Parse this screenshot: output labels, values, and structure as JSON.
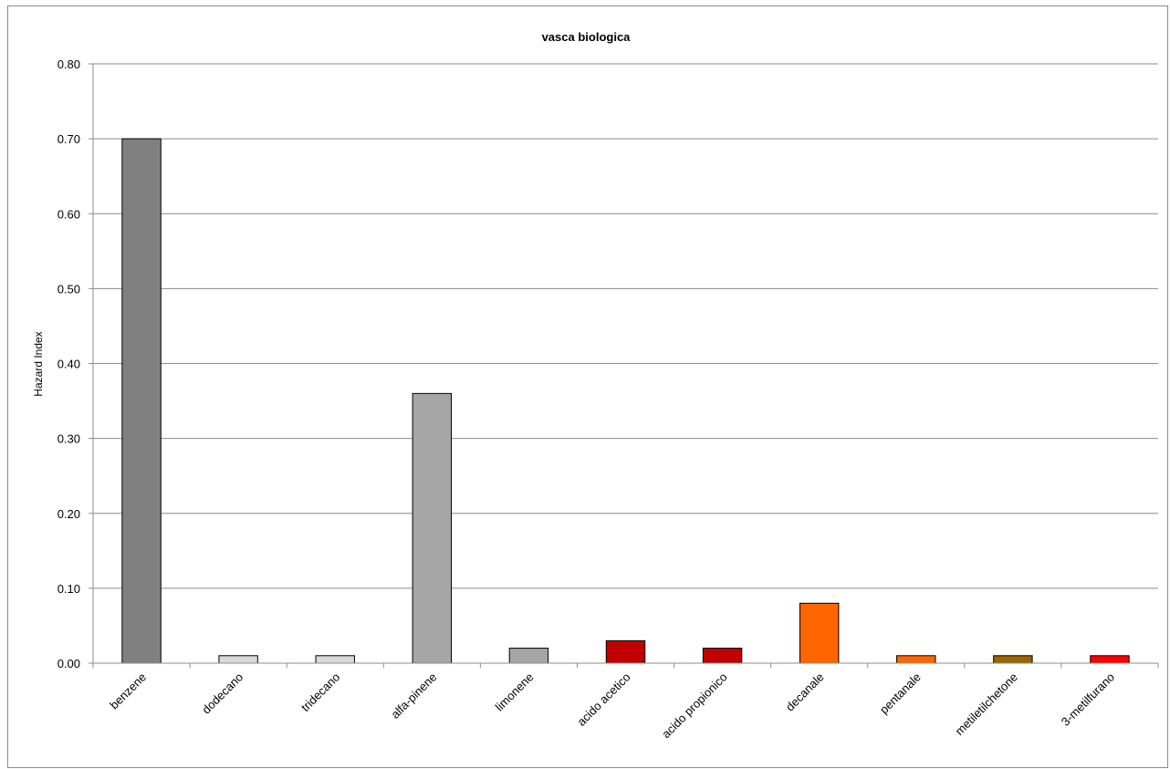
{
  "chart_data": {
    "type": "bar",
    "title": "vasca biologica",
    "xlabel": "",
    "ylabel": "Hazard Index",
    "ylim": [
      0,
      0.8
    ],
    "yticks": [
      "0.00",
      "0.10",
      "0.20",
      "0.30",
      "0.40",
      "0.50",
      "0.60",
      "0.70",
      "0.80"
    ],
    "grid": true,
    "categories": [
      "benzene",
      "dodecano",
      "tridecano",
      "alfa-pinene",
      "limonene",
      "acido acetico",
      "acido propionico",
      "decanale",
      "pentanale",
      "metiletilchetone",
      "3-metilfurano"
    ],
    "values": [
      0.7,
      0.01,
      0.01,
      0.36,
      0.02,
      0.03,
      0.02,
      0.08,
      0.01,
      0.01,
      0.01
    ],
    "colors": [
      "#808080",
      "#d9d9d9",
      "#d9d9d9",
      "#a6a6a6",
      "#a6a6a6",
      "#c00000",
      "#c00000",
      "#ff6600",
      "#ff6600",
      "#996600",
      "#ff0000"
    ]
  }
}
